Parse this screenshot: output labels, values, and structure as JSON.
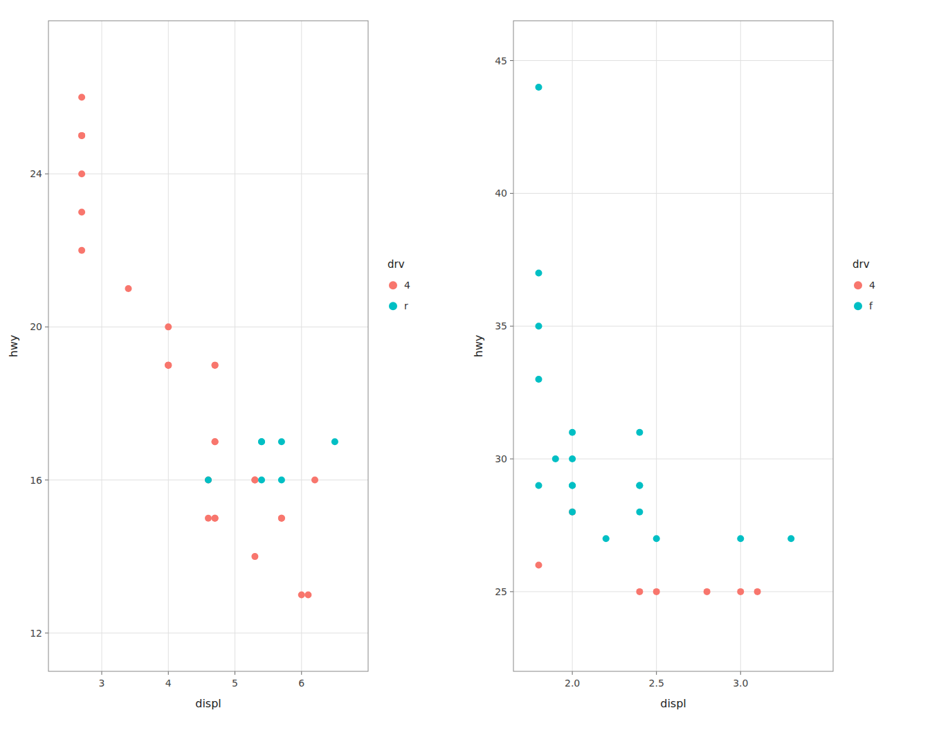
{
  "chart_data": [
    {
      "type": "scatter",
      "xlabel": "displ",
      "ylabel": "hwy",
      "legend_title": "drv",
      "series": [
        {
          "name": "4",
          "color": "#F8766D",
          "x": [
            2.7,
            2.7,
            2.7,
            2.7,
            2.7,
            2.7,
            3.4,
            4.0,
            4.0,
            4.0,
            4.0,
            4.6,
            4.6,
            4.7,
            4.7,
            4.7,
            4.7,
            4.7,
            4.7,
            5.3,
            5.3,
            5.3,
            5.7,
            5.7,
            6.0,
            6.1,
            6.2
          ],
          "values": [
            26,
            25,
            25,
            24,
            23,
            22,
            21,
            20,
            19,
            19,
            19,
            16,
            15,
            19,
            19,
            17,
            17,
            15,
            15,
            16,
            16,
            14,
            15,
            15,
            13,
            13,
            16
          ]
        },
        {
          "name": "r",
          "color": "#00BFC4",
          "x": [
            4.6,
            5.4,
            5.4,
            5.4,
            5.7,
            5.7,
            6.5
          ],
          "values": [
            16,
            17,
            17,
            16,
            17,
            16,
            17
          ]
        }
      ],
      "xlim": [
        2.2,
        7.0
      ],
      "ylim": [
        11.0,
        28.0
      ],
      "xticks": [
        3,
        4,
        5,
        6
      ],
      "yticks": [
        12,
        16,
        20,
        24
      ],
      "grid": true,
      "legend": "right"
    },
    {
      "type": "scatter",
      "xlabel": "displ",
      "ylabel": "hwy",
      "legend_title": "drv",
      "series": [
        {
          "name": "4",
          "color": "#F8766D",
          "x": [
            1.8,
            2.0,
            2.4,
            2.5,
            2.8,
            3.0,
            3.1
          ],
          "values": [
            26,
            28,
            25,
            25,
            25,
            25,
            25
          ]
        },
        {
          "name": "f",
          "color": "#00BFC4",
          "x": [
            1.8,
            1.8,
            1.8,
            1.8,
            1.8,
            1.9,
            2.0,
            2.0,
            2.0,
            2.0,
            2.0,
            2.2,
            2.4,
            2.4,
            2.4,
            2.4,
            2.5,
            3.0,
            3.3
          ],
          "values": [
            44,
            37,
            35,
            33,
            29,
            30,
            31,
            29,
            29,
            30,
            28,
            27,
            31,
            29,
            29,
            28,
            27,
            27,
            27
          ]
        }
      ],
      "xlim": [
        1.65,
        3.55
      ],
      "ylim": [
        22.0,
        46.5
      ],
      "xticks": [
        {
          "value": 2.0,
          "label": "2.0"
        },
        2.5,
        {
          "value": 3.0,
          "label": "3.0"
        }
      ],
      "yticks": [
        25,
        30,
        35,
        40,
        45
      ],
      "grid": true,
      "legend": "right"
    }
  ]
}
